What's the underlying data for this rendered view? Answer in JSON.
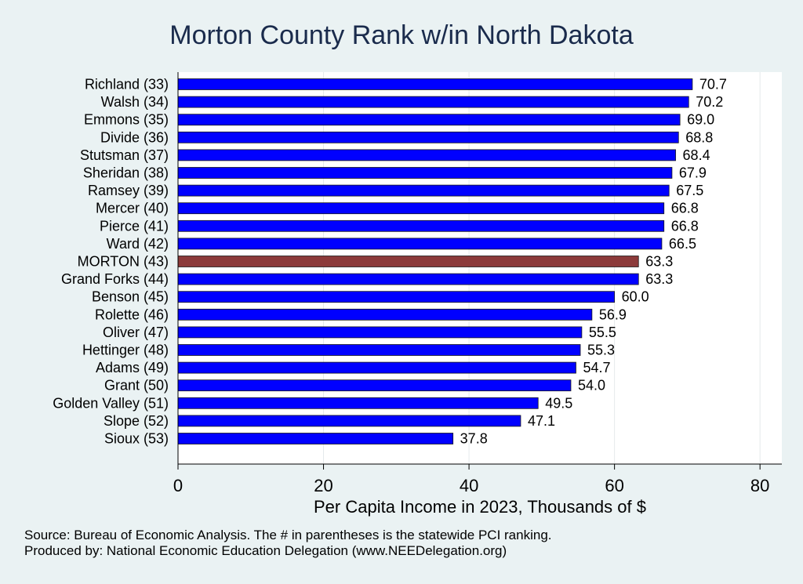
{
  "chart_data": {
    "type": "bar",
    "orientation": "horizontal",
    "title": "Morton County Rank w/in North Dakota",
    "xlabel": "Per Capita Income in 2023, Thousands of $",
    "ylabel": "",
    "xlim": [
      0,
      83
    ],
    "xticks": [
      0,
      20,
      40,
      60,
      80
    ],
    "categories": [
      "Richland (33)",
      "Walsh (34)",
      "Emmons (35)",
      "Divide (36)",
      "Stutsman (37)",
      "Sheridan (38)",
      "Ramsey (39)",
      "Mercer (40)",
      "Pierce (41)",
      "Ward (42)",
      "MORTON (43)",
      "Grand Forks (44)",
      "Benson (45)",
      "Rolette (46)",
      "Oliver (47)",
      "Hettinger (48)",
      "Adams (49)",
      "Grant (50)",
      "Golden Valley (51)",
      "Slope (52)",
      "Sioux (53)"
    ],
    "values": [
      70.7,
      70.2,
      69.0,
      68.8,
      68.4,
      67.9,
      67.5,
      66.8,
      66.8,
      66.5,
      63.3,
      63.3,
      60.0,
      56.9,
      55.5,
      55.3,
      54.7,
      54.0,
      49.5,
      47.1,
      37.8
    ],
    "value_labels": [
      "70.7",
      "70.2",
      "69.0",
      "68.8",
      "68.4",
      "67.9",
      "67.5",
      "66.8",
      "66.8",
      "66.5",
      "63.3",
      "63.3",
      "60.0",
      "56.9",
      "55.5",
      "55.3",
      "54.7",
      "54.0",
      "49.5",
      "47.1",
      "37.8"
    ],
    "highlight_index": 10,
    "colors": {
      "bar": "#0000ff",
      "highlight": "#8c3a3a",
      "gridline": "#e4eaec",
      "background": "#eaf2f3",
      "title": "#1a2b4c"
    },
    "grid": true
  },
  "footer": {
    "source": "Source: Bureau of Economic Analysis. The # in parentheses is the statewide PCI ranking.",
    "credit": "Produced by: National Economic Education Delegation (www.NEEDelegation.org)"
  }
}
